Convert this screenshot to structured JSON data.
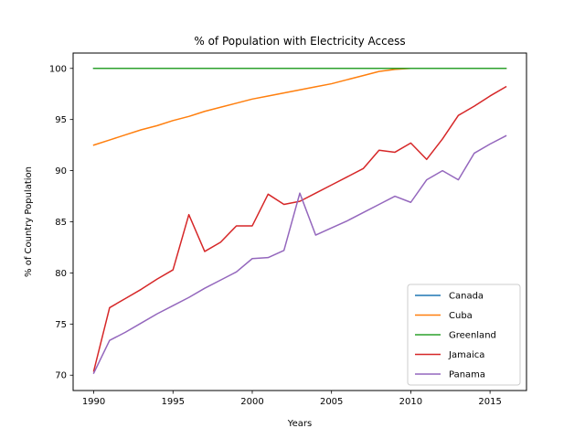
{
  "chart_data": {
    "type": "line",
    "title": "% of Population with Electricity Access",
    "xlabel": "Years",
    "ylabel": "% of Country Population",
    "xlim": [
      1988.7,
      2017.3
    ],
    "ylim": [
      68.5,
      101.5
    ],
    "xticks": [
      1990,
      1995,
      2000,
      2005,
      2010,
      2015
    ],
    "yticks": [
      70,
      75,
      80,
      85,
      90,
      95,
      100
    ],
    "grid": false,
    "legend_position": "lower right",
    "series": [
      {
        "name": "Canada",
        "color": "#1f77b4",
        "x": [
          1990,
          1991,
          1992,
          1993,
          1994,
          1995,
          1996,
          1997,
          1998,
          1999,
          2000,
          2001,
          2002,
          2003,
          2004,
          2005,
          2006,
          2007,
          2008,
          2009,
          2010,
          2011,
          2012,
          2013,
          2014,
          2015,
          2016
        ],
        "y": [
          100,
          100,
          100,
          100,
          100,
          100,
          100,
          100,
          100,
          100,
          100,
          100,
          100,
          100,
          100,
          100,
          100,
          100,
          100,
          100,
          100,
          100,
          100,
          100,
          100,
          100,
          100
        ]
      },
      {
        "name": "Cuba",
        "color": "#ff7f0e",
        "x": [
          1990,
          1991,
          1992,
          1993,
          1994,
          1995,
          1996,
          1997,
          1998,
          1999,
          2000,
          2001,
          2002,
          2003,
          2004,
          2005,
          2006,
          2007,
          2008,
          2009,
          2010,
          2011,
          2012,
          2013,
          2014,
          2015,
          2016
        ],
        "y": [
          92.5,
          93.0,
          93.5,
          94.0,
          94.4,
          94.9,
          95.3,
          95.8,
          96.2,
          96.6,
          97.0,
          97.3,
          97.6,
          97.9,
          98.2,
          98.5,
          98.9,
          99.3,
          99.7,
          99.9,
          100,
          100,
          100,
          100,
          100,
          100,
          100
        ]
      },
      {
        "name": "Greenland",
        "color": "#2ca02c",
        "x": [
          1990,
          1991,
          1992,
          1993,
          1994,
          1995,
          1996,
          1997,
          1998,
          1999,
          2000,
          2001,
          2002,
          2003,
          2004,
          2005,
          2006,
          2007,
          2008,
          2009,
          2010,
          2011,
          2012,
          2013,
          2014,
          2015,
          2016
        ],
        "y": [
          100,
          100,
          100,
          100,
          100,
          100,
          100,
          100,
          100,
          100,
          100,
          100,
          100,
          100,
          100,
          100,
          100,
          100,
          100,
          100,
          100,
          100,
          100,
          100,
          100,
          100,
          100
        ]
      },
      {
        "name": "Jamaica",
        "color": "#d62728",
        "x": [
          1990,
          1991,
          1992,
          1993,
          1994,
          1995,
          1996,
          1997,
          1998,
          1999,
          2000,
          2001,
          2002,
          2003,
          2004,
          2005,
          2006,
          2007,
          2008,
          2009,
          2010,
          2011,
          2012,
          2013,
          2014,
          2015,
          2016
        ],
        "y": [
          70.4,
          76.6,
          77.5,
          78.4,
          79.4,
          80.3,
          85.7,
          82.1,
          83.0,
          84.6,
          84.6,
          87.7,
          86.7,
          87.0,
          87.8,
          88.6,
          89.4,
          90.2,
          92.0,
          91.8,
          92.7,
          91.1,
          93.1,
          95.4,
          96.3,
          97.3,
          98.2
        ]
      },
      {
        "name": "Panama",
        "color": "#9467bd",
        "x": [
          1990,
          1991,
          1992,
          1993,
          1994,
          1995,
          1996,
          1997,
          1998,
          1999,
          2000,
          2001,
          2002,
          2003,
          2004,
          2005,
          2006,
          2007,
          2008,
          2009,
          2010,
          2011,
          2012,
          2013,
          2014,
          2015,
          2016
        ],
        "y": [
          70.2,
          73.4,
          74.2,
          75.1,
          76.0,
          76.8,
          77.6,
          78.5,
          79.3,
          80.1,
          81.4,
          81.5,
          82.2,
          87.8,
          83.7,
          84.4,
          85.1,
          85.9,
          86.7,
          87.5,
          86.9,
          89.1,
          90.0,
          89.1,
          91.7,
          92.6,
          93.4
        ]
      }
    ]
  }
}
